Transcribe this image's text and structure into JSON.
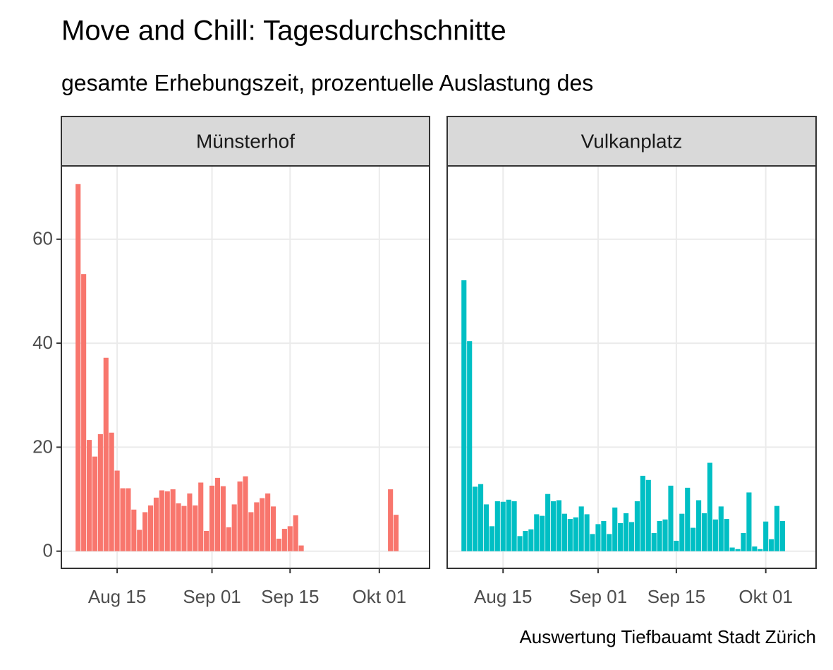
{
  "chart_data": {
    "type": "bar",
    "title": "Move and Chill: Tagesdurchschnitte",
    "subtitle": "gesamte Erhebungszeit, prozentuelle Auslastung des",
    "caption": "Auswertung Tiefbauamt Stadt Zürich",
    "ylim": [
      -3.3,
      74.1
    ],
    "yticks": [
      0,
      20,
      40,
      60
    ],
    "xlim": [
      "08-05",
      "10-10"
    ],
    "xticks": [
      {
        "value": "08-15",
        "label": "Aug 15"
      },
      {
        "value": "09-01",
        "label": "Sep 01"
      },
      {
        "value": "09-15",
        "label": "Sep 15"
      },
      {
        "value": "10-01",
        "label": "Okt 01"
      }
    ],
    "grid": true,
    "series": [
      {
        "name": "Münsterhof",
        "color": "#f8766d",
        "x": [
          "08-08",
          "08-09",
          "08-10",
          "08-11",
          "08-12",
          "08-13",
          "08-14",
          "08-15",
          "08-16",
          "08-17",
          "08-18",
          "08-19",
          "08-20",
          "08-21",
          "08-22",
          "08-23",
          "08-24",
          "08-25",
          "08-26",
          "08-27",
          "08-28",
          "08-29",
          "08-30",
          "08-31",
          "09-01",
          "09-02",
          "09-03",
          "09-04",
          "09-05",
          "09-06",
          "09-07",
          "09-08",
          "09-09",
          "09-10",
          "09-11",
          "09-12",
          "09-13",
          "09-14",
          "09-15",
          "09-16",
          "09-17",
          "10-03",
          "10-04"
        ],
        "values": [
          70.6,
          53.3,
          21.4,
          18.2,
          22.5,
          37.2,
          22.8,
          15.5,
          12.1,
          12.1,
          8.0,
          4.1,
          7.5,
          8.8,
          10.3,
          11.7,
          11.5,
          11.9,
          9.2,
          8.7,
          11.1,
          8.8,
          13.2,
          3.9,
          12.6,
          14.1,
          12.5,
          4.6,
          9.0,
          13.4,
          14.4,
          7.5,
          9.4,
          10.2,
          11.1,
          8.6,
          2.4,
          4.3,
          4.8,
          6.9,
          1.1,
          11.9,
          7.0
        ]
      },
      {
        "name": "Vulkanplatz",
        "color": "#00bfc4",
        "x": [
          "08-08",
          "08-09",
          "08-10",
          "08-11",
          "08-12",
          "08-13",
          "08-14",
          "08-15",
          "08-16",
          "08-17",
          "08-18",
          "08-19",
          "08-20",
          "08-21",
          "08-22",
          "08-23",
          "08-24",
          "08-25",
          "08-26",
          "08-27",
          "08-28",
          "08-29",
          "08-30",
          "08-31",
          "09-01",
          "09-02",
          "09-03",
          "09-04",
          "09-05",
          "09-06",
          "09-07",
          "09-08",
          "09-09",
          "09-10",
          "09-11",
          "09-12",
          "09-13",
          "09-14",
          "09-15",
          "09-16",
          "09-17",
          "09-18",
          "09-19",
          "09-20",
          "09-21",
          "09-22",
          "09-23",
          "09-24",
          "09-25",
          "09-26",
          "09-27",
          "09-28",
          "09-29",
          "09-30",
          "10-01",
          "10-02",
          "10-03",
          "10-04"
        ],
        "values": [
          52.1,
          40.4,
          12.4,
          12.9,
          9.0,
          4.8,
          9.6,
          9.5,
          9.9,
          9.6,
          2.9,
          3.9,
          4.2,
          7.1,
          6.8,
          11.0,
          9.6,
          9.8,
          7.2,
          6.2,
          6.5,
          8.6,
          7.1,
          3.3,
          5.2,
          5.8,
          3.3,
          8.4,
          5.4,
          7.3,
          5.6,
          9.6,
          14.5,
          13.7,
          3.5,
          5.8,
          6.1,
          12.6,
          2.0,
          7.2,
          12.2,
          4.5,
          9.8,
          7.3,
          17.0,
          6.1,
          8.6,
          6.2,
          0.7,
          0.4,
          3.5,
          11.3,
          0.9,
          0.4,
          5.7,
          2.3,
          8.7,
          5.8
        ]
      }
    ]
  }
}
